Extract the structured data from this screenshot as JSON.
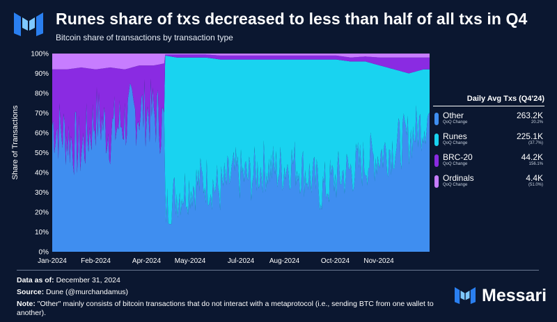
{
  "header": {
    "title": "Runes share of txs decreased to less than half of all txs in Q4",
    "subtitle": "Bitcoin share of transactions by transaction type"
  },
  "legend": {
    "title": "Daily Avg Txs (Q4'24)",
    "qoq_label": "QoQ Change",
    "items": [
      {
        "name": "Other",
        "value": "263.2K",
        "qoq": "20.2%",
        "color": "#3f8ef0"
      },
      {
        "name": "Runes",
        "value": "225.1K",
        "qoq": "(37.7%)",
        "color": "#19d3f0"
      },
      {
        "name": "BRC-20",
        "value": "44.2K",
        "qoq": "156.1%",
        "color": "#8a2be2"
      },
      {
        "name": "Ordinals",
        "value": "4.4K",
        "qoq": "(51.0%)",
        "color": "#c77dff"
      }
    ]
  },
  "chart_data": {
    "type": "area",
    "stacked": true,
    "title": "Bitcoin share of transactions by transaction type",
    "xlabel": "",
    "ylabel": "Share of Transactions",
    "ylim": [
      0,
      100
    ],
    "y_ticks": [
      "0%",
      "10%",
      "20%",
      "30%",
      "40%",
      "50%",
      "60%",
      "70%",
      "80%",
      "90%",
      "100%"
    ],
    "x_ticks": [
      "Jan-2024",
      "Feb-2024",
      "Apr-2024",
      "May-2024",
      "Jul-2024",
      "Aug-2024",
      "Oct-2024",
      "Nov-2024"
    ],
    "x_tick_days": [
      0,
      42,
      91,
      133,
      182,
      224,
      273,
      315
    ],
    "x_range_days": [
      0,
      364
    ],
    "runes_launch_day": 109,
    "x": [
      "Jan 01",
      "Jan 15",
      "Jan 29",
      "Feb 12",
      "Feb 26",
      "Mar 11",
      "Mar 25",
      "Apr 08",
      "Apr 19",
      "Apr 20",
      "May 01",
      "May 15",
      "May 29",
      "Jun 12",
      "Jun 26",
      "Jul 10",
      "Jul 24",
      "Aug 07",
      "Aug 21",
      "Sep 04",
      "Sep 18",
      "Oct 02",
      "Oct 16",
      "Oct 30",
      "Nov 13",
      "Nov 27",
      "Dec 11",
      "Dec 25",
      "Dec 31"
    ],
    "x_days": [
      0,
      14,
      28,
      42,
      56,
      70,
      84,
      98,
      108,
      109,
      120,
      134,
      148,
      162,
      176,
      190,
      204,
      218,
      232,
      246,
      260,
      274,
      288,
      302,
      316,
      330,
      344,
      358,
      364
    ],
    "series": [
      {
        "name": "Other",
        "values": [
          68,
          62,
          55,
          72,
          64,
          70,
          75,
          73,
          68,
          20,
          28,
          32,
          35,
          30,
          38,
          36,
          42,
          40,
          44,
          38,
          30,
          36,
          40,
          44,
          48,
          52,
          56,
          64,
          68
        ]
      },
      {
        "name": "Runes",
        "values": [
          0,
          0,
          0,
          0,
          0,
          0,
          0,
          0,
          0,
          79,
          70,
          66,
          63,
          67,
          59,
          61,
          55,
          57,
          53,
          59,
          67,
          61,
          56,
          52,
          46,
          40,
          34,
          28,
          24
        ]
      },
      {
        "name": "BRC-20",
        "values": [
          24,
          30,
          38,
          20,
          29,
          22,
          19,
          21,
          27,
          0.5,
          1.5,
          1.5,
          1.5,
          2,
          2,
          2,
          2,
          2,
          2,
          2,
          2,
          2,
          2,
          2.5,
          4,
          6,
          8,
          6,
          6
        ]
      },
      {
        "name": "Ordinals",
        "values": [
          8,
          8,
          7,
          8,
          7,
          8,
          6,
          6,
          5,
          0.5,
          0.5,
          0.5,
          0.5,
          1,
          1,
          1,
          1,
          1,
          1,
          1,
          1,
          1,
          2,
          1.5,
          2,
          2,
          2,
          2,
          2
        ]
      }
    ]
  },
  "footer": {
    "data_as_of_label": "Data as of:",
    "data_as_of": "December 31, 2024",
    "source_label": "Source:",
    "source": "Dune (@murchandamus)",
    "note_label": "Note:",
    "note": "\"Other\" mainly consists of bitcoin transactions that do not interact with a metaprotocol (i.e., sending BTC from one wallet to another).",
    "brand": "Messari"
  }
}
